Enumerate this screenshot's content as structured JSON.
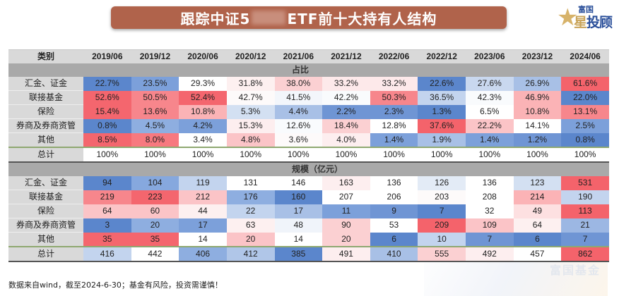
{
  "header": {
    "title_prefix": "跟踪中证5",
    "title_suffix": "ETF前十大持有人结构",
    "logo": {
      "top_text": "富国",
      "star_char": "星",
      "main_text": "投顾",
      "star_icon": "★"
    }
  },
  "table": {
    "category_header": "类别",
    "periods": [
      "2019/06",
      "2019/12",
      "2020/06",
      "2020/12",
      "2021/06",
      "2021/12",
      "2022/06",
      "2022/12",
      "2023/06",
      "2023/12",
      "2024/06"
    ],
    "sections": [
      {
        "title": "占比",
        "rows": [
          {
            "label": "汇金、证金",
            "values": [
              "22.7%",
              "23.5%",
              "29.3%",
              "31.8%",
              "38.0%",
              "33.2%",
              "33.2%",
              "22.6%",
              "27.6%",
              "26.9%",
              "61.6%"
            ],
            "colors": [
              "#5b86cc",
              "#7ca0da",
              "#ffffff",
              "#fdf0f0",
              "#fbd0d2",
              "#fde9ea",
              "#fde9ea",
              "#5b86cc",
              "#c9d8ef",
              "#a8c0e6",
              "#f4636b"
            ]
          },
          {
            "label": "联接基金",
            "values": [
              "52.6%",
              "50.5%",
              "52.4%",
              "42.7%",
              "41.5%",
              "42.2%",
              "50.3%",
              "36.5%",
              "42.3%",
              "46.9%",
              "22.0%"
            ],
            "colors": [
              "#f4666e",
              "#f7868c",
              "#f4666e",
              "#fdfafa",
              "#f3f6fb",
              "#f9fbfd",
              "#f7868c",
              "#c3d4ee",
              "#f9fbfd",
              "#fbb3b6",
              "#5b86cc"
            ]
          },
          {
            "label": "保险",
            "values": [
              "15.4%",
              "13.6%",
              "10.8%",
              "5.3%",
              "4.4%",
              "2.2%",
              "2.3%",
              "1.3%",
              "6.5%",
              "10.8%",
              "13.1%"
            ],
            "colors": [
              "#f4666e",
              "#f7868c",
              "#fbb3b6",
              "#d3e0f2",
              "#a8c0e6",
              "#6f95d4",
              "#6f95d4",
              "#5b86cc",
              "#ffffff",
              "#fbb3b6",
              "#f7868c"
            ]
          },
          {
            "label": "券商及券商资管",
            "values": [
              "0.8%",
              "4.5%",
              "4.2%",
              "15.3%",
              "12.6%",
              "18.4%",
              "12.8%",
              "37.6%",
              "22.2%",
              "14.1%",
              "2.5%"
            ],
            "colors": [
              "#5b86cc",
              "#8eaee0",
              "#7ca0da",
              "#fdeeef",
              "#f9fbfd",
              "#fbd0d2",
              "#ffffff",
              "#f4636b",
              "#fbc4c7",
              "#ffffff",
              "#7ca0da"
            ]
          },
          {
            "label": "其他",
            "values": [
              "8.5%",
              "8.0%",
              "3.4%",
              "4.8%",
              "3.6%",
              "4.0%",
              "1.4%",
              "1.9%",
              "1.4%",
              "1.2%",
              "0.8%"
            ],
            "colors": [
              "#f4666e",
              "#f7797f",
              "#ffffff",
              "#fbc4c7",
              "#fdfafa",
              "#fdeeef",
              "#7ca0da",
              "#a8c0e6",
              "#7ca0da",
              "#6f95d4",
              "#5b86cc"
            ]
          },
          {
            "label": "总计",
            "values": [
              "100%",
              "100%",
              "100%",
              "100%",
              "100%",
              "100%",
              "100%",
              "100%",
              "100%",
              "100%",
              "100%"
            ],
            "colors": [
              "#ffffff",
              "#ffffff",
              "#ffffff",
              "#ffffff",
              "#ffffff",
              "#ffffff",
              "#ffffff",
              "#ffffff",
              "#ffffff",
              "#ffffff",
              "#ffffff"
            ],
            "total": true
          }
        ]
      },
      {
        "title": "规模（亿元）",
        "rows": [
          {
            "label": "汇金、证金",
            "values": [
              "94",
              "104",
              "119",
              "131",
              "146",
              "163",
              "136",
              "126",
              "136",
              "123",
              "531"
            ],
            "colors": [
              "#5b86cc",
              "#86a8de",
              "#c3d4ee",
              "#ffffff",
              "#ffffff",
              "#fdeeef",
              "#ffffff",
              "#e3ebf6",
              "#ffffff",
              "#d3e0f2",
              "#f4636b"
            ]
          },
          {
            "label": "联接基金",
            "values": [
              "219",
              "223",
              "212",
              "176",
              "160",
              "207",
              "206",
              "203",
              "208",
              "214",
              "190"
            ],
            "colors": [
              "#f7868c",
              "#f4666e",
              "#fbc4c7",
              "#8eaee0",
              "#5b86cc",
              "#ffffff",
              "#ffffff",
              "#fdfafa",
              "#ffffff",
              "#fbb3b6",
              "#c3d4ee"
            ]
          },
          {
            "label": "保险",
            "values": [
              "64",
              "60",
              "44",
              "22",
              "17",
              "11",
              "9",
              "7",
              "32",
              "49",
              "113"
            ],
            "colors": [
              "#fbc4c7",
              "#fbc4c7",
              "#fdf0f0",
              "#c3d4ee",
              "#a8c0e6",
              "#7ca0da",
              "#6f95d4",
              "#5b86cc",
              "#ffffff",
              "#fde0e1",
              "#f4636b"
            ]
          },
          {
            "label": "券商及券商资管",
            "values": [
              "3",
              "20",
              "17",
              "63",
              "48",
              "90",
              "53",
              "209",
              "109",
              "64",
              "21"
            ],
            "colors": [
              "#5b86cc",
              "#8eaee0",
              "#7ca0da",
              "#fdf0f0",
              "#f0f4fa",
              "#fbd0d2",
              "#ffffff",
              "#f4636b",
              "#fbc4c7",
              "#fdf0f0",
              "#9cb7e3"
            ]
          },
          {
            "label": "其他",
            "values": [
              "35",
              "35",
              "14",
              "20",
              "14",
              "20",
              "6",
              "10",
              "7",
              "6",
              "7"
            ],
            "colors": [
              "#f4666e",
              "#f4666e",
              "#ffffff",
              "#fbc4c7",
              "#ffffff",
              "#fbd0d2",
              "#5b86cc",
              "#c3d4ee",
              "#6f95d4",
              "#5b86cc",
              "#6f95d4"
            ]
          },
          {
            "label": "总计",
            "values": [
              "416",
              "442",
              "406",
              "412",
              "385",
              "491",
              "410",
              "555",
              "492",
              "457",
              "862"
            ],
            "colors": [
              "#c3d4ee",
              "#ffffff",
              "#8eaee0",
              "#b0c6e8",
              "#5b86cc",
              "#fdeeef",
              "#a8c0e6",
              "#fbd0d2",
              "#fdeeef",
              "#ffffff",
              "#f4636b"
            ],
            "total": true
          }
        ]
      }
    ]
  },
  "footer": {
    "note": "数据来自wind，截至2024-6-30；基金有风险，投资需谨慎！"
  },
  "watermark": {
    "text": "富国基金"
  }
}
